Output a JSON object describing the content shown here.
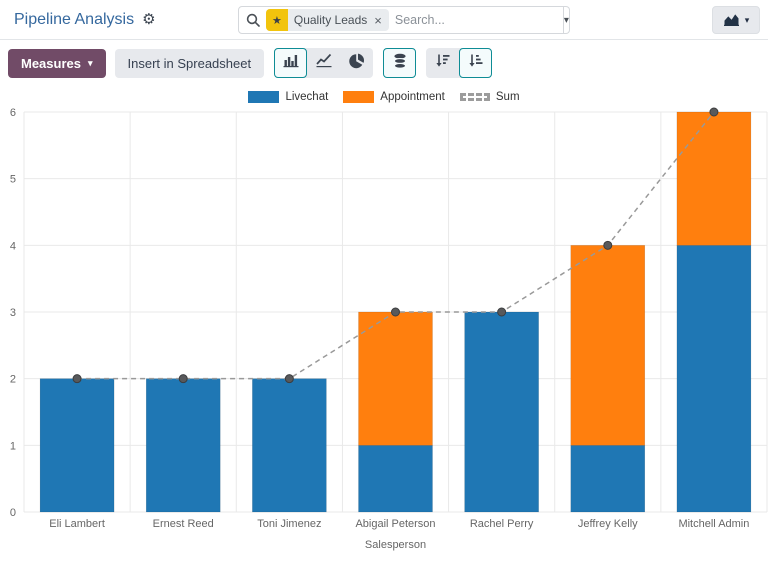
{
  "header": {
    "title": "Pipeline Analysis",
    "search": {
      "facet_label": "Quality Leads",
      "placeholder": "Search..."
    }
  },
  "icons": {
    "gear": "⚙",
    "star": "★",
    "close": "×",
    "caret": "▾"
  },
  "toolbar": {
    "measures_label": "Measures",
    "insert_label": "Insert in Spreadsheet"
  },
  "colors": {
    "primary": "#714B67",
    "active_border": "#0e8c95",
    "title_link": "#35689e",
    "bar_blue": "#1f77b4",
    "bar_orange": "#ff7f0e",
    "sum_line": "#999999"
  },
  "chart_data": {
    "type": "bar",
    "stacked": true,
    "title": "",
    "xlabel": "Salesperson",
    "ylabel": "",
    "ylim": [
      0,
      6
    ],
    "yticks": [
      0,
      1,
      2,
      3,
      4,
      5,
      6
    ],
    "grid": true,
    "legend_position": "top",
    "categories": [
      "Eli Lambert",
      "Ernest Reed",
      "Toni Jimenez",
      "Abigail Peterson",
      "Rachel Perry",
      "Jeffrey Kelly",
      "Mitchell Admin"
    ],
    "series": [
      {
        "name": "Livechat",
        "type": "bar",
        "color": "#1f77b4",
        "values": [
          2,
          2,
          2,
          1,
          3,
          1,
          4
        ]
      },
      {
        "name": "Appointment",
        "type": "bar",
        "color": "#ff7f0e",
        "values": [
          0,
          0,
          0,
          2,
          0,
          3,
          2
        ]
      },
      {
        "name": "Sum",
        "type": "line",
        "style": "dashed",
        "color": "#999999",
        "marker_color": "#58595b",
        "values": [
          2,
          2,
          2,
          3,
          3,
          4,
          6
        ]
      }
    ]
  }
}
